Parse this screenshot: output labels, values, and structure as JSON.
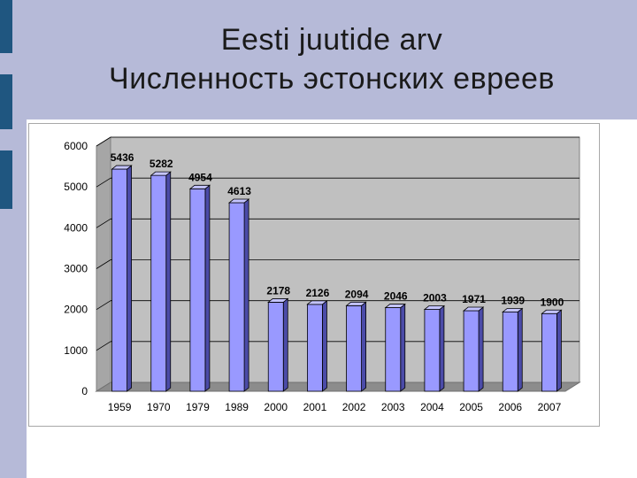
{
  "slide": {
    "title_line1": "Eesti juutide arv",
    "title_line2": "Численность эстонских евреев"
  },
  "colors": {
    "background_band": "#b6bad8",
    "accent_bars": "#1f5680",
    "bar_front": "#9999ff",
    "plot_back_wall": "#c0c0c0"
  },
  "chart_data": {
    "type": "bar",
    "categories": [
      "1959",
      "1970",
      "1979",
      "1989",
      "2000",
      "2001",
      "2002",
      "2003",
      "2004",
      "2005",
      "2006",
      "2007"
    ],
    "values": [
      5436,
      5282,
      4954,
      4613,
      2178,
      2126,
      2094,
      2046,
      2003,
      1971,
      1939,
      1900
    ],
    "data_labels": [
      "5436",
      "5282",
      "4954",
      "4613",
      "2178",
      "2126",
      "2094",
      "2046",
      "2003",
      "1971",
      "1939",
      "1900"
    ],
    "yticks": [
      "0",
      "1000",
      "2000",
      "3000",
      "4000",
      "5000",
      "6000"
    ],
    "ylim": [
      0,
      6000
    ],
    "grid": true,
    "legend": "none",
    "style": "3d-column"
  }
}
